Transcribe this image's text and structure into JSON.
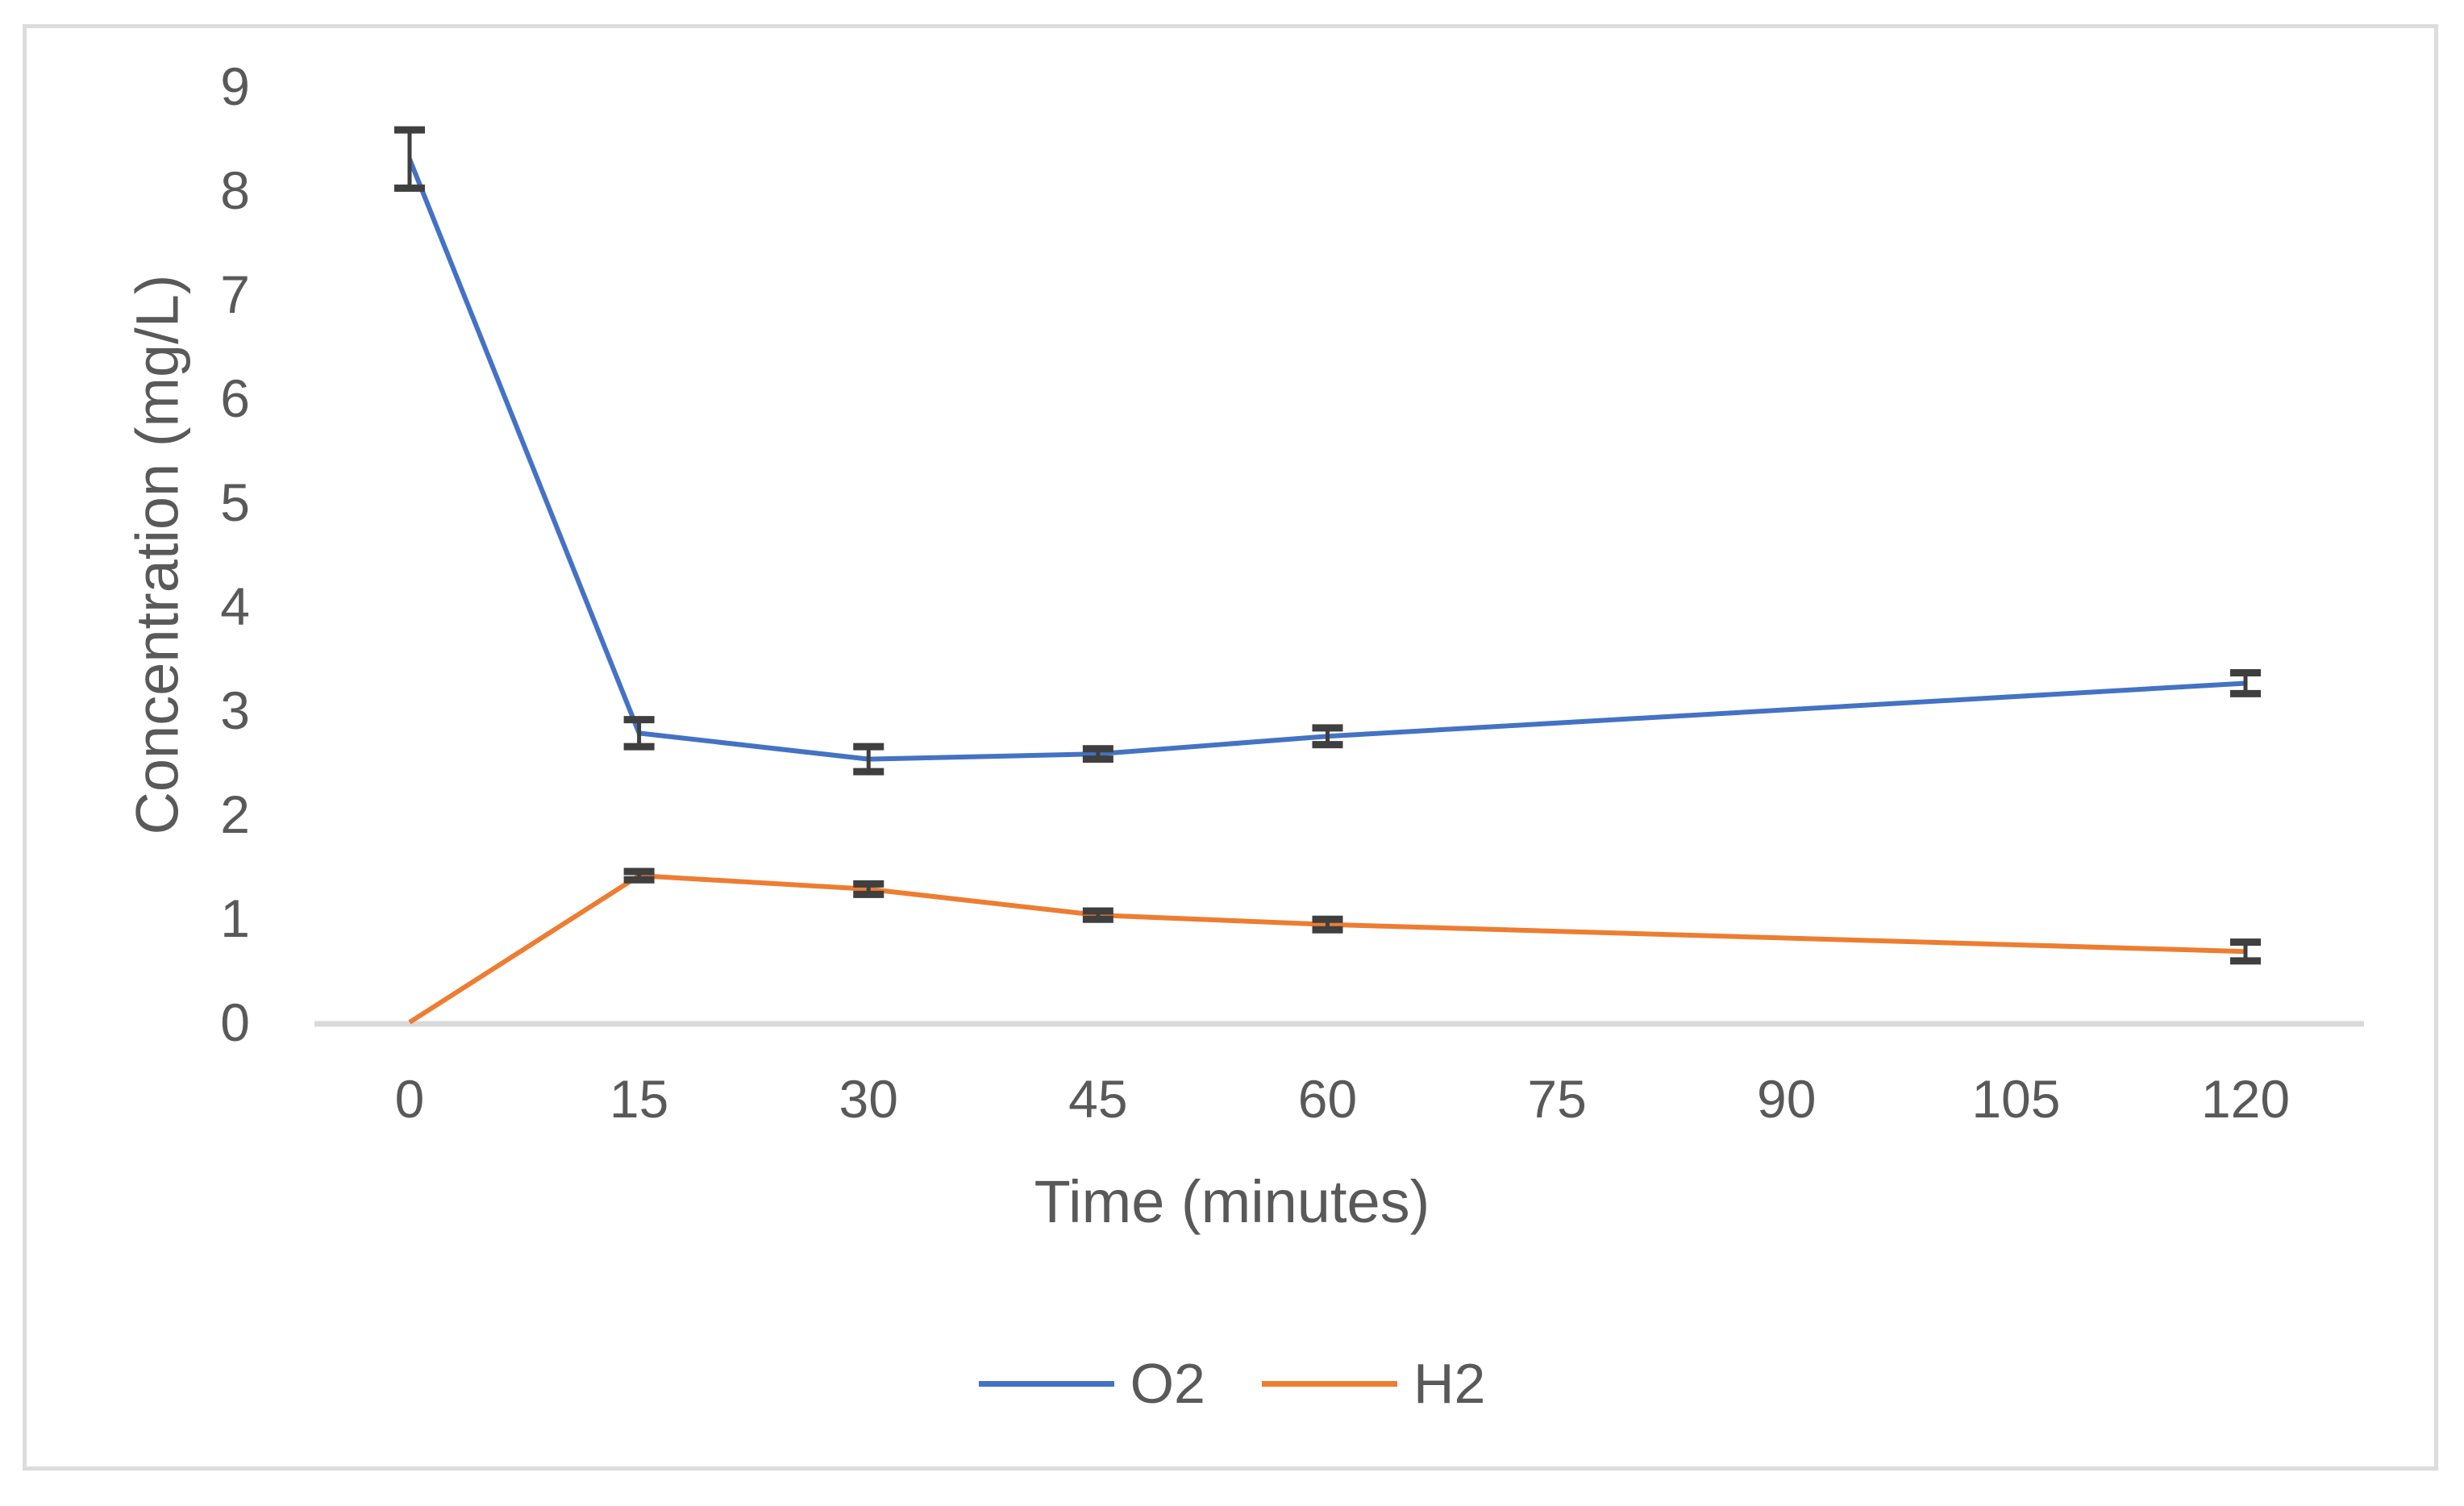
{
  "figure": {
    "background": "#ffffff",
    "border_color": "#dcdcdc"
  },
  "chart_data": {
    "type": "line",
    "title": "",
    "xlabel": "Time (minutes)",
    "ylabel": "Concentration (mg/L)",
    "xlim": [
      0,
      120
    ],
    "ylim": [
      0,
      9
    ],
    "x_ticks": [
      0,
      15,
      30,
      45,
      60,
      75,
      90,
      105,
      120
    ],
    "y_ticks": [
      0,
      1,
      2,
      3,
      4,
      5,
      6,
      7,
      8,
      9
    ],
    "grid": false,
    "legend_position": "bottom-center",
    "axis_line_color": "#d9d9d9",
    "text_color": "#595959",
    "error_bar_color": "#3f3f3f",
    "series": [
      {
        "name": "O2",
        "color": "#4472C4",
        "x": [
          0,
          15,
          30,
          45,
          60,
          120
        ],
        "y": [
          8.3,
          2.78,
          2.53,
          2.58,
          2.75,
          3.26
        ],
        "yerr": [
          0.28,
          0.13,
          0.12,
          0.05,
          0.08,
          0.1
        ]
      },
      {
        "name": "H2",
        "color": "#ED7D31",
        "x": [
          0,
          15,
          30,
          45,
          60,
          120
        ],
        "y": [
          0,
          1.41,
          1.28,
          1.03,
          0.94,
          0.68
        ],
        "yerr": [
          0,
          0.04,
          0.05,
          0.04,
          0.05,
          0.09
        ]
      }
    ]
  },
  "legend": {
    "items": [
      {
        "label": "O2"
      },
      {
        "label": "H2"
      }
    ]
  }
}
